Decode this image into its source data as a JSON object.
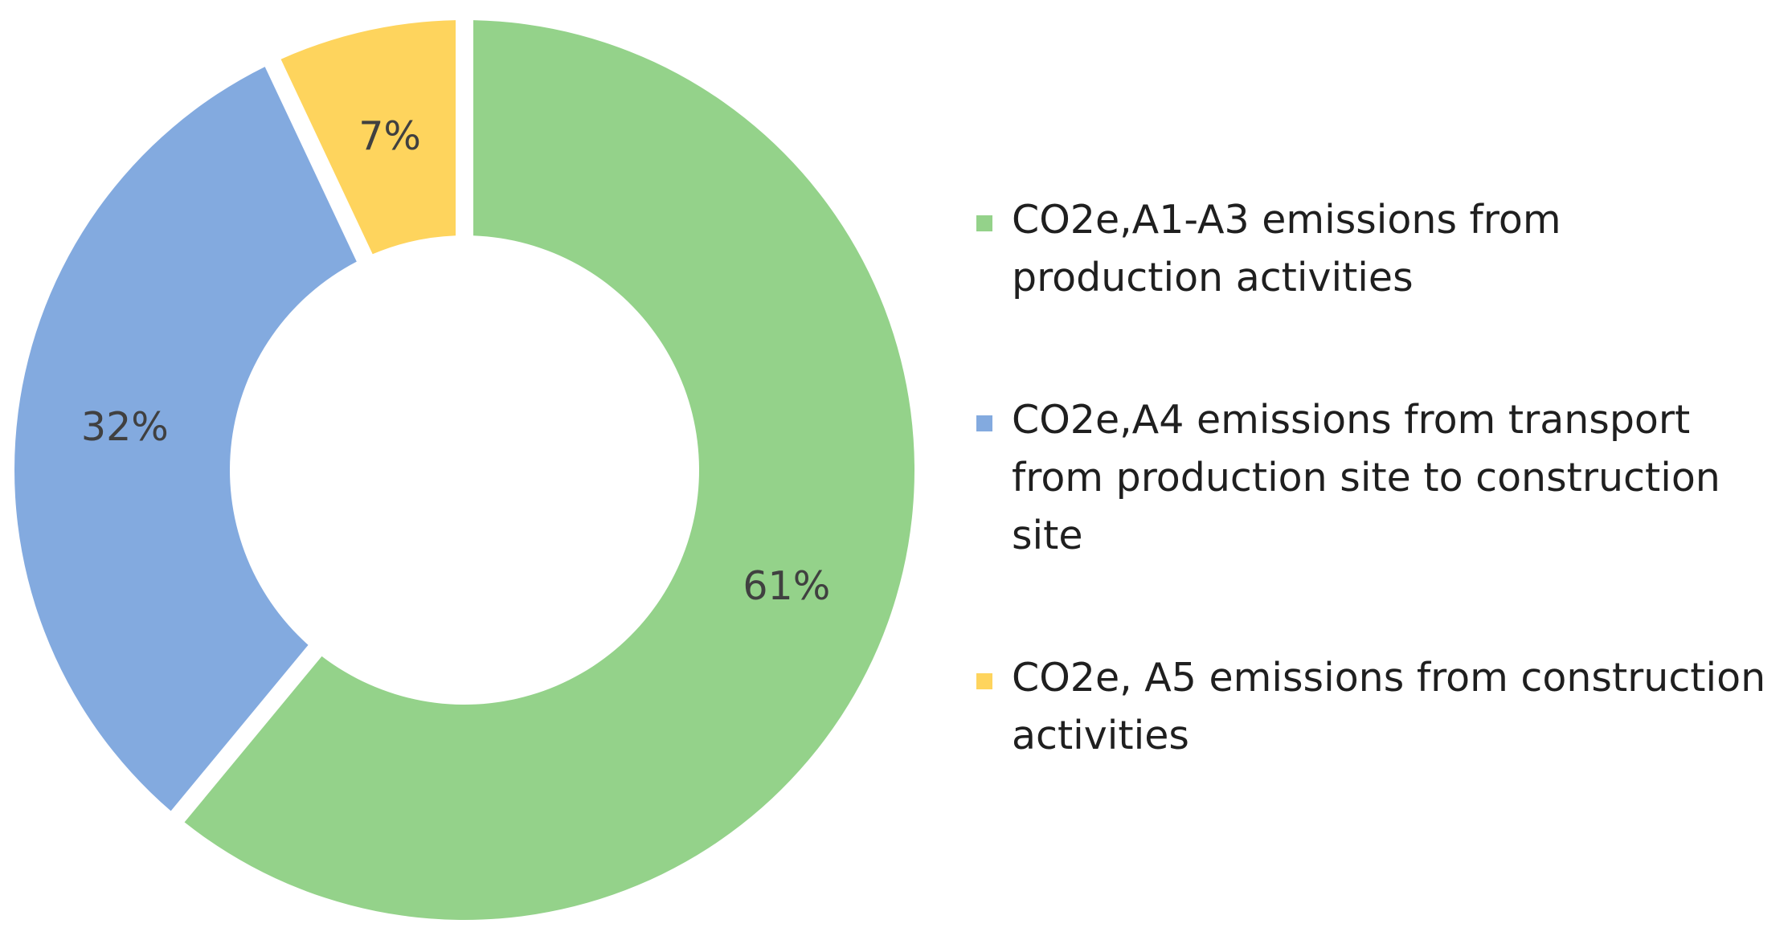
{
  "chart_data": {
    "type": "pie",
    "variant": "donut",
    "exploded": true,
    "title": "",
    "slices": [
      {
        "label": "CO2e,A1-A3 emissions from production activities",
        "value": 61,
        "display": "61%",
        "color": "#94d28a"
      },
      {
        "label": "CO2e,A4 emissions from transport from production site to construction site",
        "value": 32,
        "display": "32%",
        "color": "#83aadf"
      },
      {
        "label": "CO2e, A5 emissions from construction activities",
        "value": 7,
        "display": "7%",
        "color": "#fed45d"
      }
    ],
    "legend_position": "right"
  }
}
